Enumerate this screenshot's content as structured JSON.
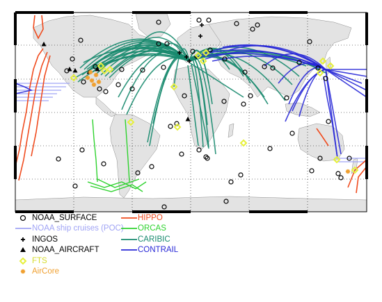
{
  "legend": {
    "left": [
      {
        "label": "NOAA_SURFACE",
        "symbol": "circle",
        "color": "#000000"
      },
      {
        "label": "NOAA ship cruises (POC)",
        "symbol": "line",
        "color": "#9fa3f5"
      },
      {
        "label": "INGOS",
        "symbol": "plus",
        "color": "#000000"
      },
      {
        "label": "NOAA_AIRCRAFT",
        "symbol": "triangle",
        "color": "#000000"
      },
      {
        "label": "FTS",
        "symbol": "diamond",
        "color": "#e6f03c"
      },
      {
        "label": "AirCore",
        "symbol": "star",
        "color": "#f0a030"
      }
    ],
    "right": [
      {
        "label": "HIPPO",
        "symbol": "line",
        "color": "#f04b1e"
      },
      {
        "label": "ORCAS",
        "symbol": "line",
        "color": "#2dd22d"
      },
      {
        "label": "CARIBIC",
        "symbol": "line",
        "color": "#178a6e"
      },
      {
        "label": "CONTRAIL",
        "symbol": "line",
        "color": "#2828d7"
      }
    ]
  },
  "colors": {
    "land": "#e3e3e3",
    "ocean": "#ffffff",
    "frame": "#000000",
    "grid": "#000000",
    "noaa_surface": "#000000",
    "ship": "#9fa3f5",
    "hippo": "#f04b1e",
    "orcas": "#2dd22d",
    "caribic": "#178a6e",
    "contrail": "#2828d7",
    "fts": "#e6f03c",
    "aircore": "#f0a030"
  }
}
